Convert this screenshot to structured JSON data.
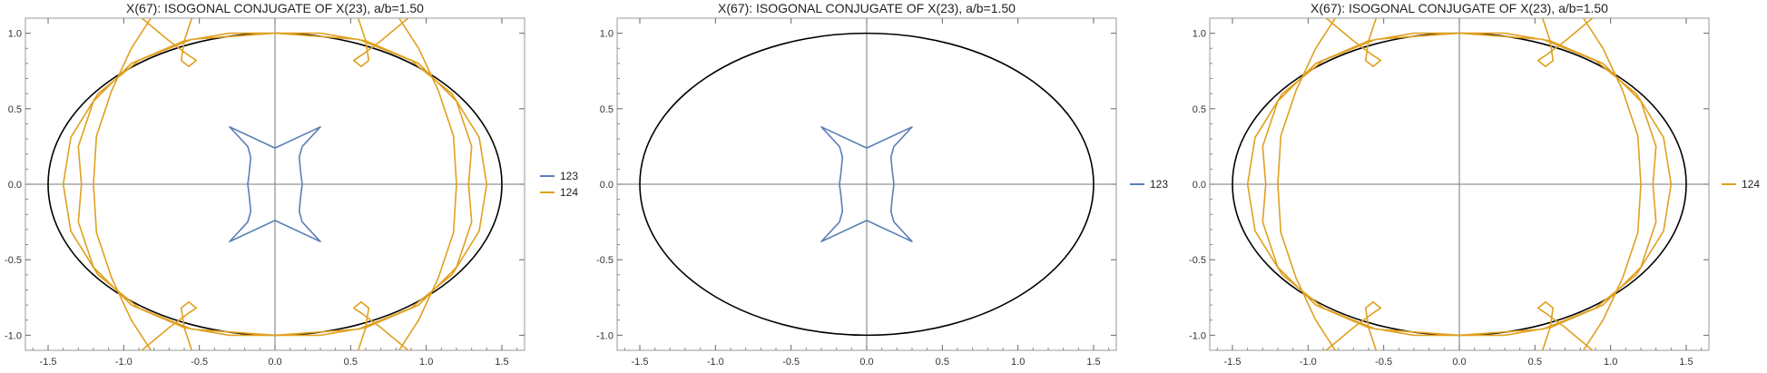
{
  "colors": {
    "series_123": "#5b7fb5",
    "series_124": "#e0a020",
    "ellipse": "#000000",
    "axis": "#7a7a7a",
    "frame": "#9a9a9a"
  },
  "chart_data": [
    {
      "type": "line",
      "title": "X(67): ISOGONAL CONJUGATE OF X(23), a/b=1.50",
      "xlim": [
        -1.65,
        1.65
      ],
      "ylim": [
        -1.1,
        1.1
      ],
      "xticks": [
        -1.5,
        -1.0,
        -0.5,
        0.0,
        0.5,
        1.0,
        1.5
      ],
      "xtick_labels": [
        "-1.5",
        "-1.0",
        "-0.5",
        "0.0",
        "0.5",
        "1.0",
        "1.5"
      ],
      "yticks": [
        -1.0,
        -0.5,
        0.0,
        0.5,
        1.0
      ],
      "ytick_labels": [
        "-1.0",
        "-0.5",
        "0.0",
        "0.5",
        "1.0"
      ],
      "ellipse": {
        "a": 1.5,
        "b": 1.0
      },
      "legend_position": "right",
      "series": [
        {
          "name": "123",
          "color": "#5b7fb5",
          "points": [
            [
              0.0,
              -0.24
            ],
            [
              0.3,
              -0.38
            ],
            [
              0.18,
              -0.25
            ],
            [
              0.16,
              -0.18
            ],
            [
              0.17,
              -0.08
            ],
            [
              0.18,
              0.0
            ],
            [
              0.17,
              0.08
            ],
            [
              0.16,
              0.18
            ],
            [
              0.18,
              0.25
            ],
            [
              0.3,
              0.38
            ],
            [
              0.0,
              0.24
            ],
            [
              -0.3,
              0.38
            ],
            [
              -0.18,
              0.25
            ],
            [
              -0.16,
              0.18
            ],
            [
              -0.17,
              0.08
            ],
            [
              -0.18,
              0.0
            ],
            [
              -0.17,
              -0.08
            ],
            [
              -0.16,
              -0.18
            ],
            [
              -0.18,
              -0.25
            ],
            [
              -0.3,
              -0.38
            ],
            [
              0.0,
              -0.24
            ]
          ]
        },
        {
          "name": "124",
          "color": "#e0a020",
          "points": [
            [
              0.0,
              -1.0
            ],
            [
              0.55,
              -0.96
            ],
            [
              0.9,
              -0.82
            ],
            [
              1.17,
              -0.6
            ],
            [
              1.35,
              -0.31
            ],
            [
              1.4,
              0.0
            ],
            [
              1.35,
              0.31
            ],
            [
              1.17,
              0.6
            ],
            [
              0.9,
              0.82
            ],
            [
              0.55,
              0.96
            ],
            [
              0.0,
              1.0
            ],
            [
              -0.55,
              0.96
            ],
            [
              -0.9,
              0.82
            ],
            [
              -1.17,
              0.6
            ],
            [
              -1.35,
              0.31
            ],
            [
              -1.4,
              0.0
            ],
            [
              -1.35,
              -0.31
            ],
            [
              -1.17,
              -0.6
            ],
            [
              -0.9,
              -0.82
            ],
            [
              -0.55,
              -0.96
            ],
            [
              0.0,
              -1.0
            ],
            null,
            [
              -0.82,
              -1.1
            ],
            [
              -0.95,
              -0.9
            ],
            [
              -1.08,
              -0.62
            ],
            [
              -1.18,
              -0.32
            ],
            [
              -1.2,
              0.0
            ],
            [
              -1.18,
              0.32
            ],
            [
              -1.08,
              0.62
            ],
            [
              -0.95,
              0.9
            ],
            [
              -0.82,
              1.1
            ],
            null,
            [
              0.82,
              -1.1
            ],
            [
              0.95,
              -0.9
            ],
            [
              1.08,
              -0.62
            ],
            [
              1.18,
              -0.32
            ],
            [
              1.2,
              0.0
            ],
            [
              1.18,
              0.32
            ],
            [
              1.08,
              0.62
            ],
            [
              0.95,
              0.9
            ],
            [
              0.82,
              1.1
            ],
            null,
            [
              -1.3,
              -0.25
            ],
            [
              -1.28,
              0.0
            ],
            [
              -1.3,
              0.25
            ],
            [
              -1.2,
              0.55
            ],
            [
              -0.95,
              0.8
            ],
            [
              -0.6,
              0.95
            ],
            [
              -0.3,
              1.0
            ],
            [
              0.0,
              1.0
            ],
            [
              0.3,
              1.0
            ],
            [
              0.6,
              0.95
            ],
            [
              0.95,
              0.8
            ],
            [
              1.2,
              0.55
            ],
            [
              1.3,
              0.25
            ],
            [
              1.28,
              0.0
            ],
            [
              1.3,
              -0.25
            ],
            [
              1.2,
              -0.55
            ],
            [
              0.95,
              -0.8
            ],
            [
              0.6,
              -0.95
            ],
            [
              0.3,
              -1.0
            ],
            [
              0.0,
              -1.0
            ],
            [
              -0.3,
              -1.0
            ],
            [
              -0.6,
              -0.95
            ],
            [
              -0.95,
              -0.8
            ],
            [
              -1.2,
              -0.55
            ],
            [
              -1.3,
              -0.25
            ],
            null,
            [
              -0.55,
              1.1
            ],
            [
              -0.6,
              0.95
            ],
            [
              -0.62,
              0.82
            ],
            [
              -0.57,
              0.78
            ],
            [
              -0.52,
              0.82
            ],
            [
              -0.58,
              0.86
            ],
            [
              -0.7,
              0.95
            ],
            [
              -0.88,
              1.1
            ],
            null,
            [
              0.55,
              1.1
            ],
            [
              0.6,
              0.95
            ],
            [
              0.62,
              0.82
            ],
            [
              0.57,
              0.78
            ],
            [
              0.52,
              0.82
            ],
            [
              0.58,
              0.86
            ],
            [
              0.7,
              0.95
            ],
            [
              0.88,
              1.1
            ],
            null,
            [
              -0.55,
              -1.1
            ],
            [
              -0.6,
              -0.95
            ],
            [
              -0.62,
              -0.82
            ],
            [
              -0.57,
              -0.78
            ],
            [
              -0.52,
              -0.82
            ],
            [
              -0.58,
              -0.86
            ],
            [
              -0.7,
              -0.95
            ],
            [
              -0.88,
              -1.1
            ],
            null,
            [
              0.55,
              -1.1
            ],
            [
              0.6,
              -0.95
            ],
            [
              0.62,
              -0.82
            ],
            [
              0.57,
              -0.78
            ],
            [
              0.52,
              -0.82
            ],
            [
              0.58,
              -0.86
            ],
            [
              0.7,
              -0.95
            ],
            [
              0.88,
              -1.1
            ]
          ]
        }
      ]
    },
    {
      "type": "line",
      "title": "X(67): ISOGONAL CONJUGATE OF X(23), a/b=1.50",
      "xlim": [
        -1.65,
        1.65
      ],
      "ylim": [
        -1.1,
        1.1
      ],
      "xticks": [
        -1.5,
        -1.0,
        -0.5,
        0.0,
        0.5,
        1.0,
        1.5
      ],
      "xtick_labels": [
        "-1.5",
        "-1.0",
        "-0.5",
        "0.0",
        "0.5",
        "1.0",
        "1.5"
      ],
      "yticks": [
        -1.0,
        -0.5,
        0.0,
        0.5,
        1.0
      ],
      "ytick_labels": [
        "-1.0",
        "-0.5",
        "0.0",
        "0.5",
        "1.0"
      ],
      "ellipse": {
        "a": 1.5,
        "b": 1.0
      },
      "legend_position": "right",
      "series": [
        {
          "name": "123",
          "color": "#5b7fb5",
          "points": [
            [
              0.0,
              -0.24
            ],
            [
              0.3,
              -0.38
            ],
            [
              0.18,
              -0.25
            ],
            [
              0.16,
              -0.18
            ],
            [
              0.17,
              -0.08
            ],
            [
              0.18,
              0.0
            ],
            [
              0.17,
              0.08
            ],
            [
              0.16,
              0.18
            ],
            [
              0.18,
              0.25
            ],
            [
              0.3,
              0.38
            ],
            [
              0.0,
              0.24
            ],
            [
              -0.3,
              0.38
            ],
            [
              -0.18,
              0.25
            ],
            [
              -0.16,
              0.18
            ],
            [
              -0.17,
              0.08
            ],
            [
              -0.18,
              0.0
            ],
            [
              -0.17,
              -0.08
            ],
            [
              -0.16,
              -0.18
            ],
            [
              -0.18,
              -0.25
            ],
            [
              -0.3,
              -0.38
            ],
            [
              0.0,
              -0.24
            ]
          ]
        }
      ]
    },
    {
      "type": "line",
      "title": "X(67): ISOGONAL CONJUGATE OF X(23), a/b=1.50",
      "xlim": [
        -1.65,
        1.65
      ],
      "ylim": [
        -1.1,
        1.1
      ],
      "xticks": [
        -1.5,
        -1.0,
        -0.5,
        0.0,
        0.5,
        1.0,
        1.5
      ],
      "xtick_labels": [
        "-1.5",
        "-1.0",
        "-0.5",
        "0.0",
        "0.5",
        "1.0",
        "1.5"
      ],
      "yticks": [
        -1.0,
        -0.5,
        0.0,
        0.5,
        1.0
      ],
      "ytick_labels": [
        "-1.0",
        "-0.5",
        "0.0",
        "0.5",
        "1.0"
      ],
      "ellipse": {
        "a": 1.5,
        "b": 1.0
      },
      "legend_position": "right",
      "series": [
        {
          "name": "124",
          "color": "#e0a020",
          "points": [
            [
              0.0,
              -1.0
            ],
            [
              0.55,
              -0.96
            ],
            [
              0.9,
              -0.82
            ],
            [
              1.17,
              -0.6
            ],
            [
              1.35,
              -0.31
            ],
            [
              1.4,
              0.0
            ],
            [
              1.35,
              0.31
            ],
            [
              1.17,
              0.6
            ],
            [
              0.9,
              0.82
            ],
            [
              0.55,
              0.96
            ],
            [
              0.0,
              1.0
            ],
            [
              -0.55,
              0.96
            ],
            [
              -0.9,
              0.82
            ],
            [
              -1.17,
              0.6
            ],
            [
              -1.35,
              0.31
            ],
            [
              -1.4,
              0.0
            ],
            [
              -1.35,
              -0.31
            ],
            [
              -1.17,
              -0.6
            ],
            [
              -0.9,
              -0.82
            ],
            [
              -0.55,
              -0.96
            ],
            [
              0.0,
              -1.0
            ],
            null,
            [
              -0.82,
              -1.1
            ],
            [
              -0.95,
              -0.9
            ],
            [
              -1.08,
              -0.62
            ],
            [
              -1.18,
              -0.32
            ],
            [
              -1.2,
              0.0
            ],
            [
              -1.18,
              0.32
            ],
            [
              -1.08,
              0.62
            ],
            [
              -0.95,
              0.9
            ],
            [
              -0.82,
              1.1
            ],
            null,
            [
              0.82,
              -1.1
            ],
            [
              0.95,
              -0.9
            ],
            [
              1.08,
              -0.62
            ],
            [
              1.18,
              -0.32
            ],
            [
              1.2,
              0.0
            ],
            [
              1.18,
              0.32
            ],
            [
              1.08,
              0.62
            ],
            [
              0.95,
              0.9
            ],
            [
              0.82,
              1.1
            ],
            null,
            [
              -1.3,
              -0.25
            ],
            [
              -1.28,
              0.0
            ],
            [
              -1.3,
              0.25
            ],
            [
              -1.2,
              0.55
            ],
            [
              -0.95,
              0.8
            ],
            [
              -0.6,
              0.95
            ],
            [
              -0.3,
              1.0
            ],
            [
              0.0,
              1.0
            ],
            [
              0.3,
              1.0
            ],
            [
              0.6,
              0.95
            ],
            [
              0.95,
              0.8
            ],
            [
              1.2,
              0.55
            ],
            [
              1.3,
              0.25
            ],
            [
              1.28,
              0.0
            ],
            [
              1.3,
              -0.25
            ],
            [
              1.2,
              -0.55
            ],
            [
              0.95,
              -0.8
            ],
            [
              0.6,
              -0.95
            ],
            [
              0.3,
              -1.0
            ],
            [
              0.0,
              -1.0
            ],
            [
              -0.3,
              -1.0
            ],
            [
              -0.6,
              -0.95
            ],
            [
              -0.95,
              -0.8
            ],
            [
              -1.2,
              -0.55
            ],
            [
              -1.3,
              -0.25
            ],
            null,
            [
              -0.55,
              1.1
            ],
            [
              -0.6,
              0.95
            ],
            [
              -0.62,
              0.82
            ],
            [
              -0.57,
              0.78
            ],
            [
              -0.52,
              0.82
            ],
            [
              -0.58,
              0.86
            ],
            [
              -0.7,
              0.95
            ],
            [
              -0.88,
              1.1
            ],
            null,
            [
              0.55,
              1.1
            ],
            [
              0.6,
              0.95
            ],
            [
              0.62,
              0.82
            ],
            [
              0.57,
              0.78
            ],
            [
              0.52,
              0.82
            ],
            [
              0.58,
              0.86
            ],
            [
              0.7,
              0.95
            ],
            [
              0.88,
              1.1
            ],
            null,
            [
              -0.55,
              -1.1
            ],
            [
              -0.6,
              -0.95
            ],
            [
              -0.62,
              -0.82
            ],
            [
              -0.57,
              -0.78
            ],
            [
              -0.52,
              -0.82
            ],
            [
              -0.58,
              -0.86
            ],
            [
              -0.7,
              -0.95
            ],
            [
              -0.88,
              -1.1
            ],
            null,
            [
              0.55,
              -1.1
            ],
            [
              0.6,
              -0.95
            ],
            [
              0.62,
              -0.82
            ],
            [
              0.57,
              -0.78
            ],
            [
              0.52,
              -0.82
            ],
            [
              0.58,
              -0.86
            ],
            [
              0.7,
              -0.95
            ],
            [
              0.88,
              -1.1
            ]
          ]
        }
      ]
    }
  ]
}
